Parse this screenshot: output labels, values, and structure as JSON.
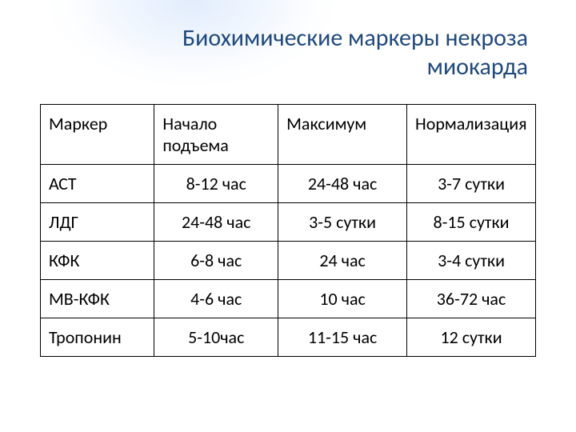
{
  "title": {
    "line1": "Биохимические маркеры некроза",
    "line2": "миокарда",
    "color": "#1f497d",
    "fontsize_pt": 30
  },
  "table": {
    "border_color": "#000000",
    "background_color": "#ffffff",
    "cell_fontsize_pt": 22,
    "text_color": "#000000",
    "columns": [
      {
        "key": "marker",
        "label": "Маркер",
        "align": "left"
      },
      {
        "key": "onset",
        "label": "Начало подъема",
        "align": "left"
      },
      {
        "key": "max",
        "label": "Максимум",
        "align": "left"
      },
      {
        "key": "norm",
        "label": "Нормализация",
        "align": "left"
      }
    ],
    "rows": [
      {
        "marker": "АСТ",
        "onset": "8-12 час",
        "max": "24-48 час",
        "norm": "3-7 сутки"
      },
      {
        "marker": "ЛДГ",
        "onset": "24-48 час",
        "max": "3-5 сутки",
        "norm": "8-15 сутки"
      },
      {
        "marker": "КФК",
        "onset": "6-8 час",
        "max": "24 час",
        "norm": "3-4 сутки"
      },
      {
        "marker": "МВ-КФК",
        "onset": "4-6 час",
        "max": "10 час",
        "norm": "36-72 час"
      },
      {
        "marker": "Тропонин",
        "onset": "5-10час",
        "max": "11-15 час",
        "norm": "12 сутки"
      }
    ],
    "body_center_cols": [
      "onset",
      "max",
      "norm"
    ]
  },
  "style": {
    "gloss_color": "#d6e4fb"
  }
}
